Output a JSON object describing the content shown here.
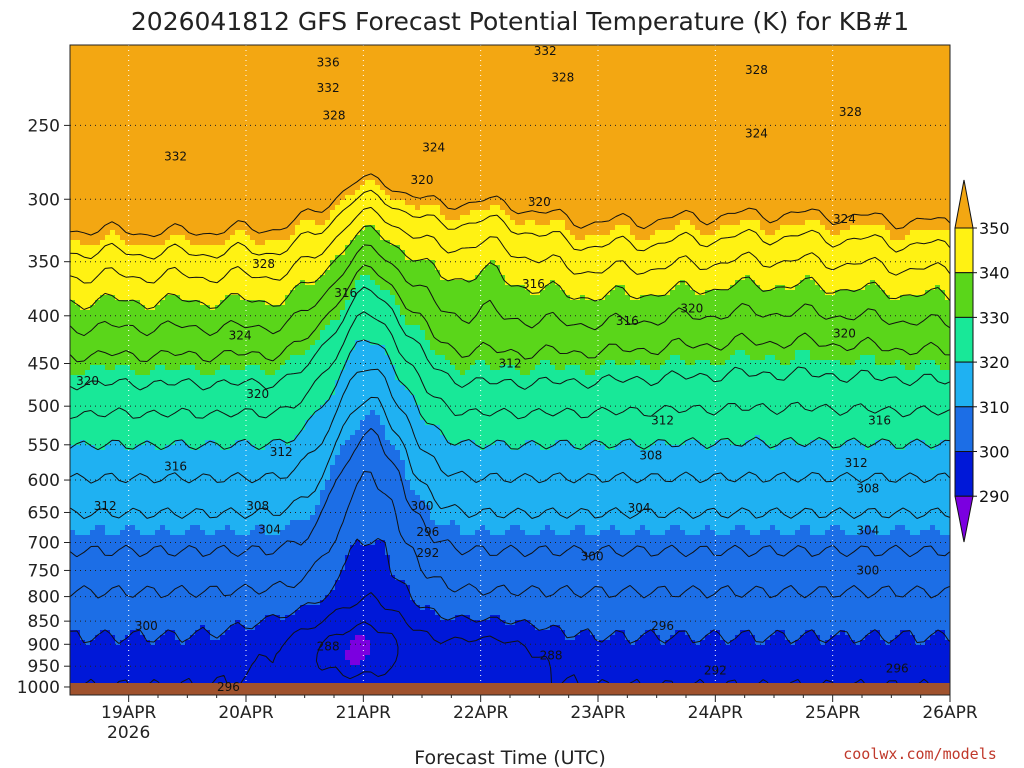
{
  "chart_data": {
    "type": "heatmap",
    "title": "2026041812 GFS Forecast Potential Temperature (K) for KB#1",
    "xlabel": "Forecast Time (UTC)",
    "ylabel": "",
    "x_ticks": [
      "19APR",
      "20APR",
      "21APR",
      "22APR",
      "23APR",
      "24APR",
      "25APR",
      "26APR"
    ],
    "x_year": "2026",
    "y_ticks": [
      250,
      300,
      350,
      400,
      450,
      500,
      550,
      600,
      650,
      700,
      750,
      800,
      850,
      900,
      950,
      1000
    ],
    "y_scale": "log-pressure",
    "ylim_hpa": [
      1020,
      205
    ],
    "xlim_days": [
      -0.5,
      7.0
    ],
    "colorbar": {
      "levels": [
        290,
        300,
        310,
        320,
        330,
        340,
        350
      ],
      "colors": {
        "lt290": "#7b00e0",
        "290-300": "#0018d8",
        "300-310": "#1c6ee6",
        "310-320": "#1fb1f2",
        "320-330": "#18e898",
        "330-340": "#5ad61a",
        "340-350": "#fff213",
        "gt350": "#f3a712"
      }
    },
    "contour_labels": [
      {
        "v": "336",
        "d": 1.7,
        "p": 214
      },
      {
        "v": "332",
        "d": 1.7,
        "p": 228
      },
      {
        "v": "328",
        "d": 1.75,
        "p": 244
      },
      {
        "v": "332",
        "d": 0.4,
        "p": 270
      },
      {
        "v": "324",
        "d": 2.6,
        "p": 264
      },
      {
        "v": "320",
        "d": 2.5,
        "p": 286
      },
      {
        "v": "332",
        "d": 3.55,
        "p": 208
      },
      {
        "v": "328",
        "d": 3.7,
        "p": 222
      },
      {
        "v": "320",
        "d": 3.5,
        "p": 302
      },
      {
        "v": "328",
        "d": 5.35,
        "p": 218
      },
      {
        "v": "324",
        "d": 5.35,
        "p": 255
      },
      {
        "v": "328",
        "d": 6.15,
        "p": 242
      },
      {
        "v": "324",
        "d": 6.1,
        "p": 315
      },
      {
        "v": "328",
        "d": 1.15,
        "p": 352
      },
      {
        "v": "316",
        "d": 1.85,
        "p": 378
      },
      {
        "v": "316",
        "d": 3.45,
        "p": 370
      },
      {
        "v": "316",
        "d": 4.25,
        "p": 405
      },
      {
        "v": "320",
        "d": 4.8,
        "p": 393
      },
      {
        "v": "320",
        "d": 6.1,
        "p": 418
      },
      {
        "v": "324",
        "d": 0.95,
        "p": 420
      },
      {
        "v": "320",
        "d": 1.1,
        "p": 485
      },
      {
        "v": "320",
        "d": -0.35,
        "p": 470
      },
      {
        "v": "312",
        "d": 3.25,
        "p": 450
      },
      {
        "v": "312",
        "d": 4.55,
        "p": 518
      },
      {
        "v": "316",
        "d": 6.4,
        "p": 518
      },
      {
        "v": "312",
        "d": 1.3,
        "p": 560
      },
      {
        "v": "316",
        "d": 0.4,
        "p": 580
      },
      {
        "v": "308",
        "d": 4.45,
        "p": 565
      },
      {
        "v": "312",
        "d": 6.2,
        "p": 575
      },
      {
        "v": "308",
        "d": 6.3,
        "p": 613
      },
      {
        "v": "312",
        "d": -0.2,
        "p": 640
      },
      {
        "v": "308",
        "d": 1.1,
        "p": 640
      },
      {
        "v": "304",
        "d": 1.2,
        "p": 678
      },
      {
        "v": "300",
        "d": 2.5,
        "p": 640
      },
      {
        "v": "304",
        "d": 4.35,
        "p": 643
      },
      {
        "v": "304",
        "d": 6.3,
        "p": 680
      },
      {
        "v": "296",
        "d": 2.55,
        "p": 682
      },
      {
        "v": "292",
        "d": 2.55,
        "p": 718
      },
      {
        "v": "300",
        "d": 3.95,
        "p": 725
      },
      {
        "v": "300",
        "d": 6.3,
        "p": 750
      },
      {
        "v": "300",
        "d": 0.15,
        "p": 860
      },
      {
        "v": "288",
        "d": 1.7,
        "p": 905
      },
      {
        "v": "288",
        "d": 3.6,
        "p": 925
      },
      {
        "v": "296",
        "d": 4.55,
        "p": 860
      },
      {
        "v": "292",
        "d": 5.0,
        "p": 960
      },
      {
        "v": "296",
        "d": 6.55,
        "p": 955
      },
      {
        "v": "296",
        "d": 0.85,
        "p": 1000
      }
    ]
  },
  "footer": {
    "credit": "coolwx.com/models"
  }
}
